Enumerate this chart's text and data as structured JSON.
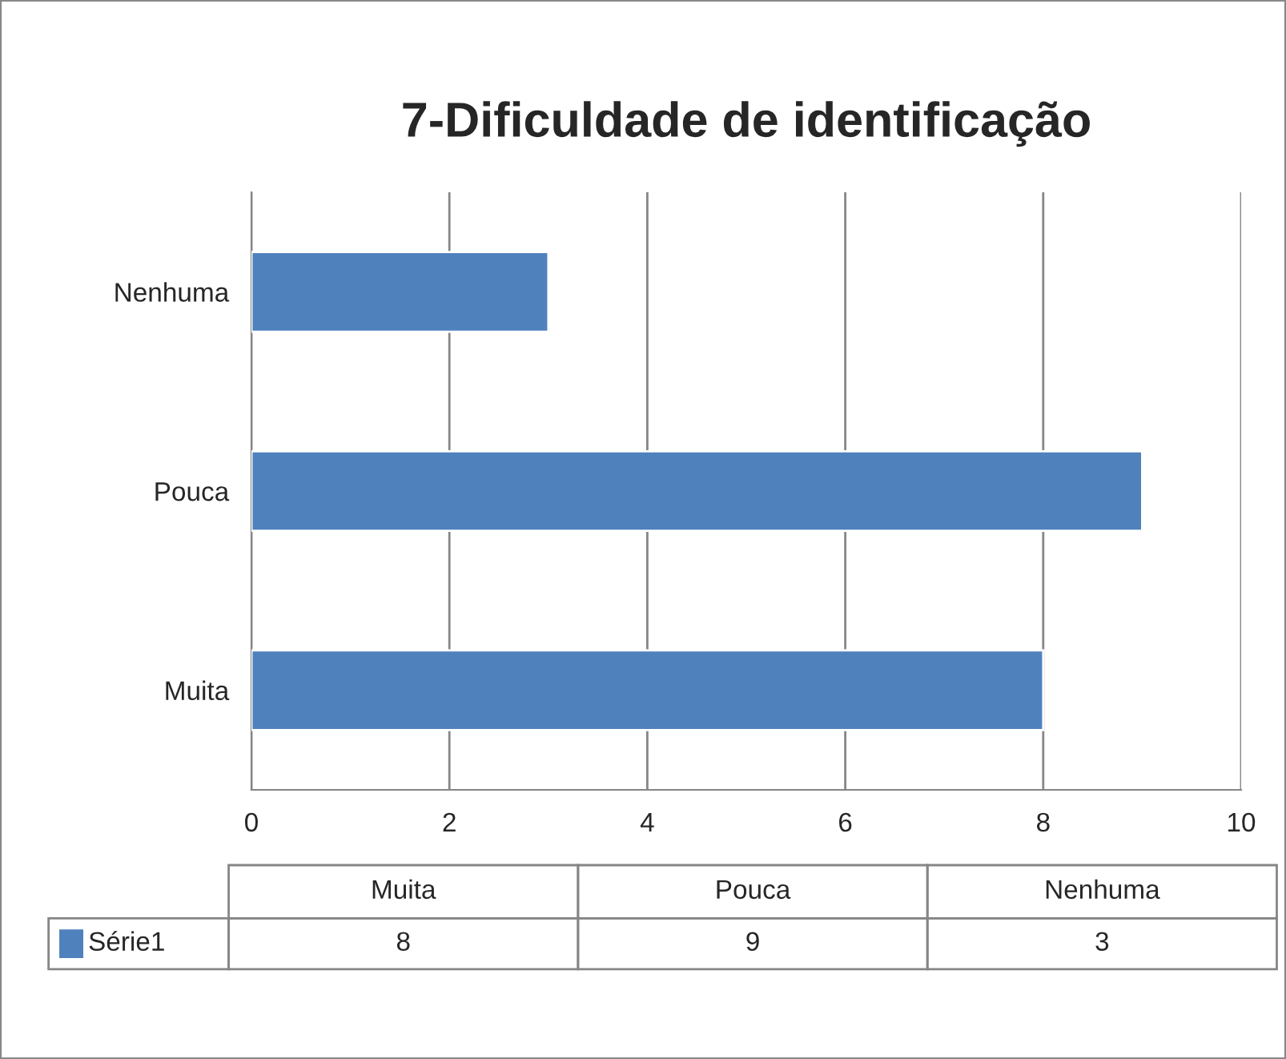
{
  "chart_data": {
    "type": "bar",
    "orientation": "horizontal",
    "title": "7-Dificuldade de identificação",
    "categories": [
      "Nenhuma",
      "Pouca",
      "Muita"
    ],
    "series": [
      {
        "name": "Série1",
        "color": "#4f81bd",
        "values": [
          3,
          9,
          8
        ]
      }
    ],
    "xlim": [
      0,
      10
    ],
    "xticks": [
      0,
      2,
      4,
      6,
      8,
      10
    ],
    "grid": "x",
    "annotations": [
      "8",
      "9",
      "3"
    ],
    "legend": "bottom"
  }
}
